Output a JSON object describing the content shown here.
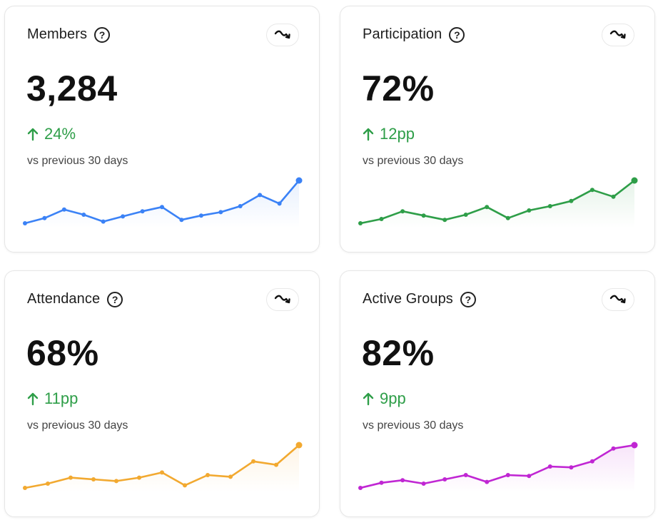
{
  "cards": [
    {
      "title": "Members",
      "value": "3,284",
      "delta": "24%",
      "caption": "vs previous 30 days",
      "color": "#3b82f6",
      "icons": {
        "help": "question-circle-icon",
        "trend": "trend-down-icon",
        "delta": "arrow-up-icon"
      },
      "sparkline": [
        0.0,
        0.12,
        0.32,
        0.2,
        0.04,
        0.16,
        0.28,
        0.38,
        0.08,
        0.18,
        0.26,
        0.4,
        0.66,
        0.46,
        1.0
      ]
    },
    {
      "title": "Participation",
      "value": "72%",
      "delta": "12pp",
      "caption": "vs previous 30 days",
      "color": "#2e9e48",
      "icons": {
        "help": "question-circle-icon",
        "trend": "trend-down-icon",
        "delta": "arrow-up-icon"
      },
      "sparkline": [
        0.0,
        0.1,
        0.28,
        0.18,
        0.08,
        0.2,
        0.38,
        0.12,
        0.3,
        0.4,
        0.52,
        0.78,
        0.62,
        1.0
      ]
    },
    {
      "title": "Attendance",
      "value": "68%",
      "delta": "11pp",
      "caption": "vs previous 30 days",
      "color": "#f2a930",
      "icons": {
        "help": "question-circle-icon",
        "trend": "trend-down-icon",
        "delta": "arrow-up-icon"
      },
      "sparkline": [
        0.0,
        0.1,
        0.24,
        0.2,
        0.16,
        0.24,
        0.36,
        0.06,
        0.3,
        0.26,
        0.62,
        0.54,
        1.0
      ]
    },
    {
      "title": "Active Groups",
      "value": "82%",
      "delta": "9pp",
      "caption": "vs previous 30 days",
      "color": "#c026d3",
      "icons": {
        "help": "question-circle-icon",
        "trend": "trend-down-icon",
        "delta": "arrow-up-icon"
      },
      "sparkline": [
        0.0,
        0.12,
        0.18,
        0.1,
        0.2,
        0.3,
        0.14,
        0.3,
        0.28,
        0.5,
        0.48,
        0.62,
        0.92,
        1.0
      ]
    }
  ]
}
